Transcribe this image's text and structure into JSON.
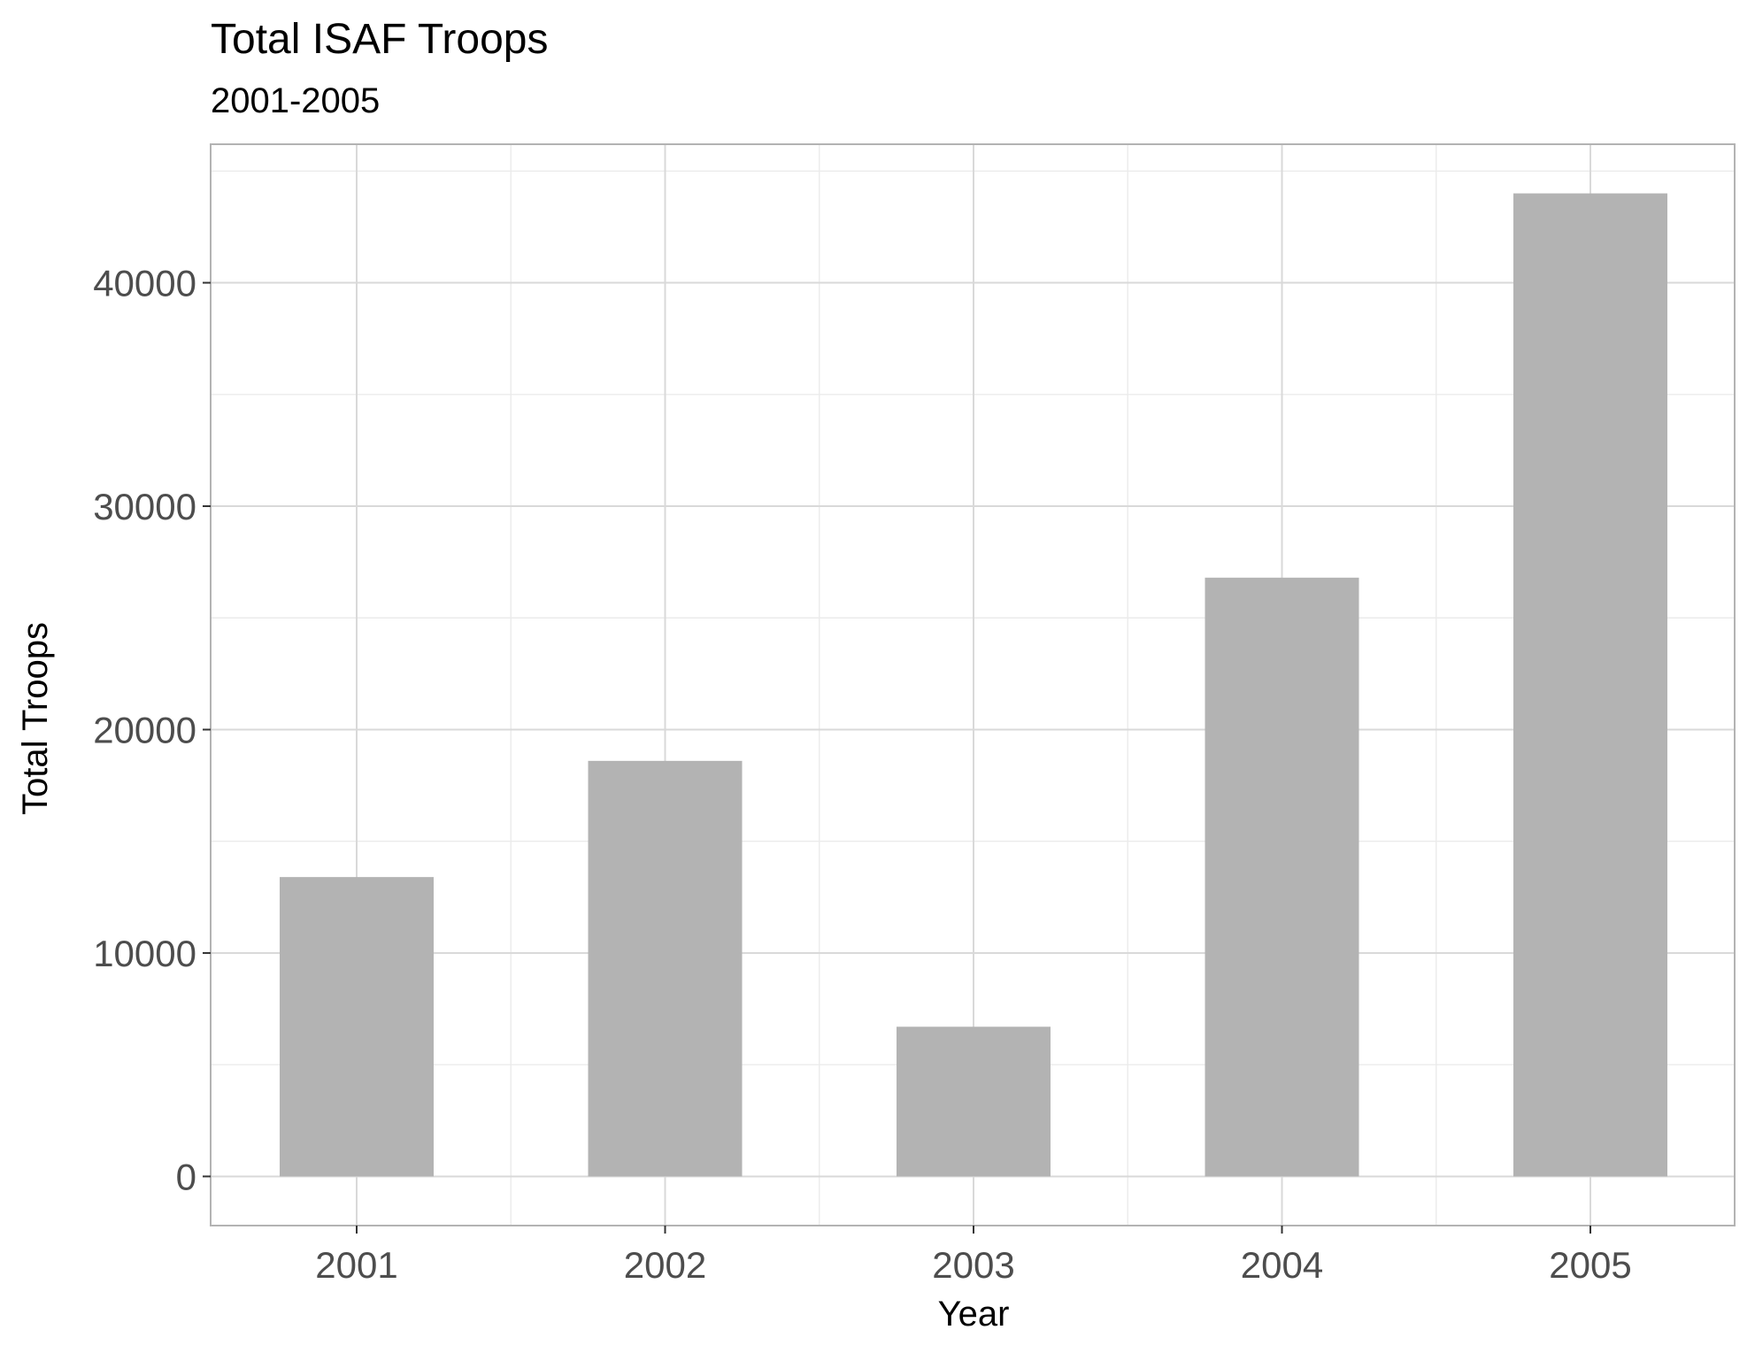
{
  "chart_data": {
    "type": "bar",
    "title": "Total ISAF Troops",
    "subtitle": "2001-2005",
    "xlabel": "Year",
    "ylabel": "Total Troops",
    "categories": [
      "2001",
      "2002",
      "2003",
      "2004",
      "2005"
    ],
    "values": [
      13400,
      18600,
      6700,
      26800,
      44000
    ],
    "ylim": [
      -2200,
      46200
    ],
    "yticks": [
      0,
      10000,
      20000,
      30000,
      40000
    ],
    "ytick_labels": [
      "0",
      "10000",
      "20000",
      "30000",
      "40000"
    ],
    "grid": true,
    "legend": "none",
    "colors": {
      "bar": "#b3b3b3",
      "grid_major": "#d9d9d9",
      "grid_minor": "#ebebeb",
      "panel_border": "#b3b3b3",
      "tick_text": "#4d4d4d",
      "title_text": "#000000"
    }
  }
}
